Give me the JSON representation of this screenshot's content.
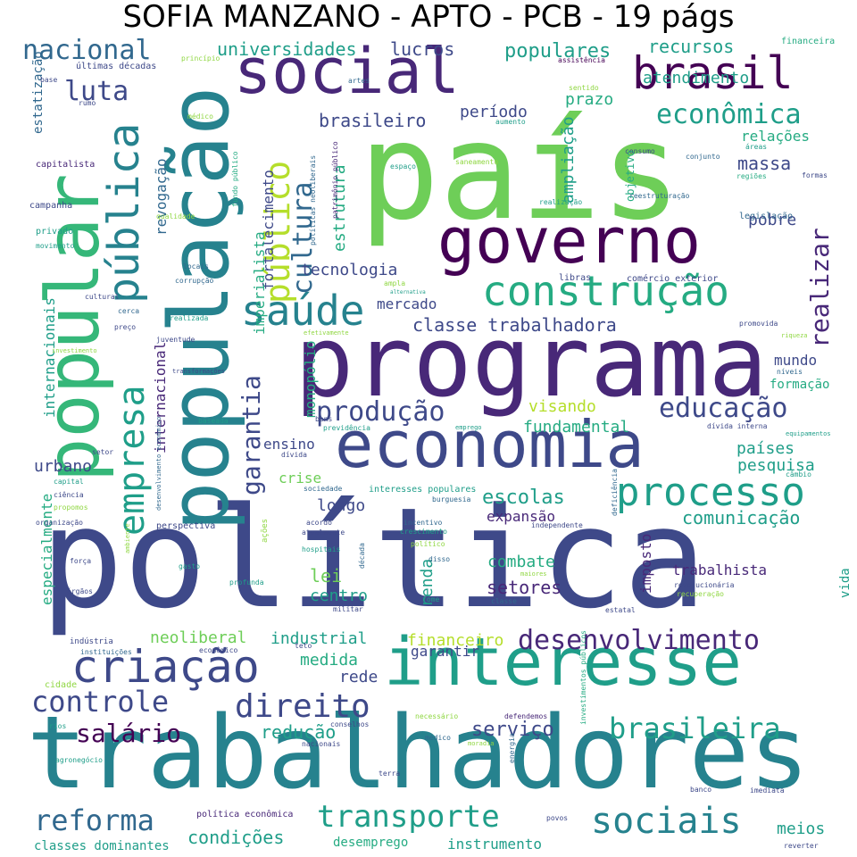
{
  "title": "SOFIA MANZANO - APTO - PCB - 19 págs",
  "palette": {
    "yellow": "#b5de2b",
    "green": "#35b779",
    "lightgreen": "#6ece58",
    "teal": "#1f9e89",
    "cyan": "#26828e",
    "blue": "#31688e",
    "indigo": "#3e4989",
    "purple": "#482878",
    "dark": "#440154",
    "lime": "#90d743",
    "sea": "#25ab82"
  },
  "words": [
    "política",
    "país",
    "trabalhadores",
    "programa",
    "população",
    "popular",
    "interesse",
    "economia",
    "governo",
    "social",
    "processo",
    "brasil",
    "criação",
    "construção",
    "desenvolvimento",
    "pública",
    "empresa",
    "saúde",
    "transporte",
    "sociais",
    "público",
    "controle",
    "direito",
    "reforma",
    "brasileira",
    "nacional",
    "luta",
    "cultura",
    "econômica",
    "educação",
    "produção",
    "garantia",
    "realizar",
    "salário",
    "classe trabalhadora",
    "serviço",
    "redução",
    "condições",
    "setores",
    "escolas",
    "comunicação",
    "recursos",
    "atendimento",
    "populares",
    "universidades",
    "lucros",
    "brasileiro",
    "período",
    "prazo",
    "ampliação",
    "relações",
    "massa",
    "pobre",
    "estrutura",
    "tecnologia",
    "mercado",
    "fortalecimento",
    "revogação",
    "imperialista",
    "internacionais",
    "monopólio",
    "internacional",
    "mundo",
    "formação",
    "visando",
    "fundamental",
    "países",
    "pesquisa",
    "ensino",
    "urbano",
    "crise",
    "longo",
    "lei",
    "centro",
    "renda",
    "imposto",
    "expansão",
    "combate",
    "trabalhista",
    "medida",
    "industrial",
    "neoliberal",
    "rede",
    "financeiro",
    "garantir",
    "especialmente",
    "vida",
    "meios",
    "instrumento",
    "desemprego",
    "classes dominantes",
    "estatização",
    "objetivo",
    "financeira",
    "últimas décadas",
    "base",
    "rumo",
    "princípio",
    "assistência",
    "sentido",
    "artes",
    "aumento",
    "capitalista",
    "médico",
    "fundo público",
    "políticas neoliberais",
    "patrimônio público",
    "espaço",
    "saneamento",
    "consumo",
    "conjunto",
    "áreas",
    "regiões",
    "formas",
    "reestruturação",
    "realização",
    "legislação",
    "qualidade",
    "campanha",
    "privado",
    "movimento",
    "locais",
    "corrupção",
    "ampla",
    "alternativa",
    "libras",
    "comércio exterior",
    "cultural",
    "cerca",
    "realizada",
    "preço",
    "juventude",
    "efetivamente",
    "promovida",
    "riqueza",
    "investimento",
    "transformações",
    "níveis",
    "baseada",
    "bens",
    "previdência",
    "emprego",
    "dívida interna",
    "equipamentos",
    "setor",
    "dívida",
    "capital",
    "ciência",
    "propomos",
    "organização",
    "desenvolvimento econômico",
    "sociedade",
    "interesses populares",
    "burguesia",
    "câmbio",
    "perspectiva",
    "acordo",
    "atualmente",
    "incentivo",
    "crescimento",
    "independente",
    "deficiência",
    "hospitais",
    "político",
    "disso",
    "força",
    "ambiente",
    "gasto",
    "ações",
    "profunda",
    "década",
    "revolucionária",
    "maiores",
    "órgãos",
    "militar",
    "fome",
    "classe",
    "recuperação",
    "estatal",
    "indústria",
    "econômico",
    "instituições",
    "teto",
    "cidade",
    "necessário",
    "defendemos",
    "rios",
    "conselhos",
    "nacionais",
    "médico",
    "moradia",
    "investimentos públicos",
    "agronegócio",
    "energia",
    "terra",
    "banco",
    "imediata",
    "política econômica",
    "povos",
    "reverter"
  ]
}
